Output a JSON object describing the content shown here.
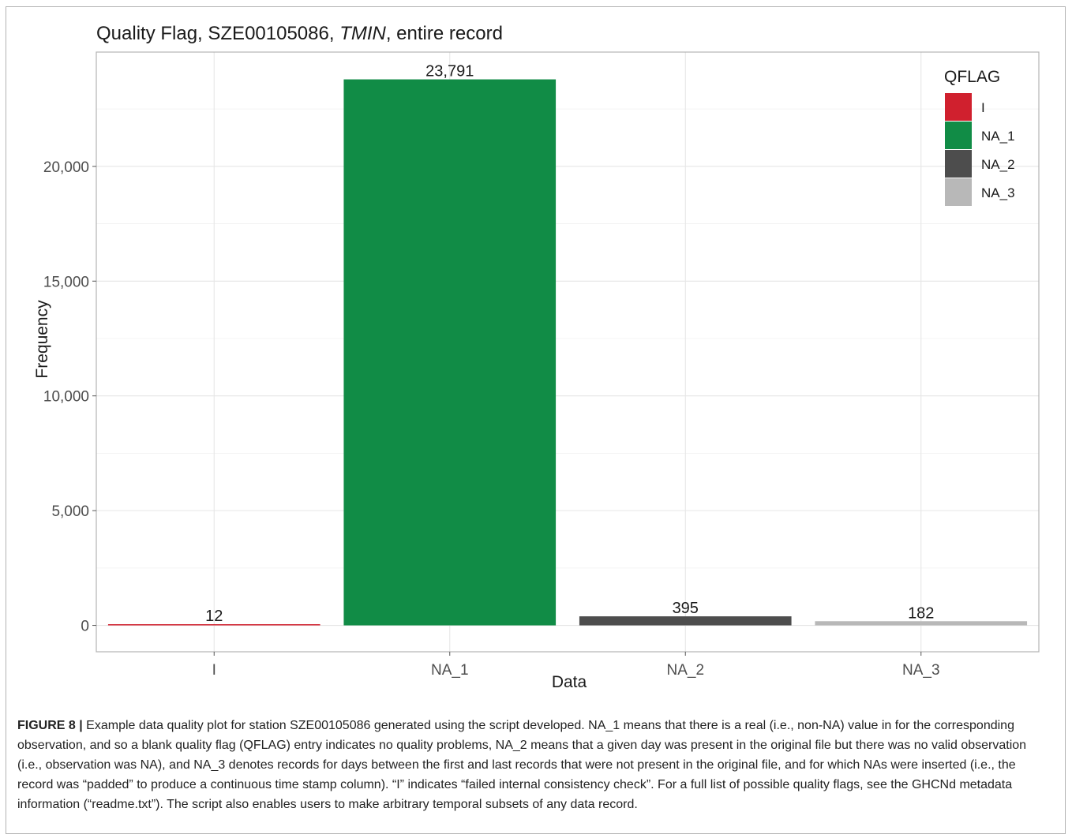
{
  "chart_data": {
    "type": "bar",
    "title_prefix": "Quality Flag, SZE00105086, ",
    "title_italic": "TMIN",
    "title_suffix": ", entire record",
    "xlabel": "Data",
    "ylabel": "Frequency",
    "categories": [
      "I",
      "NA_1",
      "NA_2",
      "NA_3"
    ],
    "values": [
      12,
      23791,
      395,
      182
    ],
    "value_labels": [
      "12",
      "23,791",
      "395",
      "182"
    ],
    "colors": [
      "#d0202e",
      "#118c46",
      "#4d4d4d",
      "#b8b8b8"
    ],
    "yticks": [
      0,
      5000,
      10000,
      15000,
      20000
    ],
    "ytick_labels": [
      "0",
      "5,000",
      "10,000",
      "15,000",
      "20,000"
    ],
    "ylim": [
      -1150,
      24980
    ],
    "grid": true,
    "legend": {
      "title": "QFLAG",
      "placement": "top-right",
      "items": [
        "I",
        "NA_1",
        "NA_2",
        "NA_3"
      ]
    }
  },
  "caption": {
    "label": "FIGURE 8 |",
    "text": " Example data quality plot for station SZE00105086 generated using the script developed. NA_1 means that there is a real (i.e., non-NA) value in for the corresponding observation, and so a blank quality flag (QFLAG) entry indicates no quality problems, NA_2 means that a given day was present in the original file but there was no valid observation (i.e., observation was NA), and NA_3 denotes records for days between the first and last records that were not present in the original file, and for which NAs were inserted (i.e., the record was “padded” to produce a continuous time stamp column). “I” indicates “failed internal consistency check”. For a full list of possible quality flags, see the GHCNd metadata information (“readme.txt”). The script also enables users to make arbitrary temporal subsets of any data record."
  }
}
